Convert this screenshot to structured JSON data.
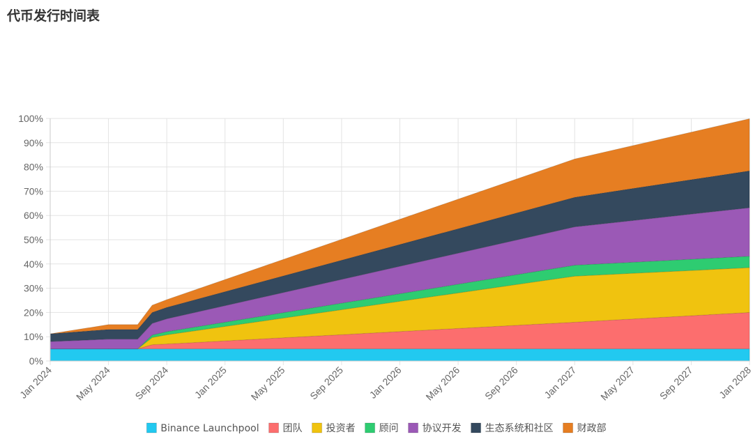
{
  "page": {
    "title": "代币发行时间表"
  },
  "chart_data": {
    "type": "area",
    "stacked": true,
    "title": "",
    "xlabel": "",
    "ylabel": "",
    "x_range": [
      "2024-01",
      "2028-01"
    ],
    "ylim": [
      0,
      100
    ],
    "y_ticks": [
      "0%",
      "10%",
      "20%",
      "30%",
      "40%",
      "50%",
      "60%",
      "70%",
      "80%",
      "90%",
      "100%"
    ],
    "x_ticks": [
      "Jan 2024",
      "May 2024",
      "Sep 2024",
      "Jan 2025",
      "May 2025",
      "Sep 2025",
      "Jan 2026",
      "May 2026",
      "Sep 2026",
      "Jan 2027",
      "May 2027",
      "Sep 2027",
      "Jan 2028"
    ],
    "grid": true,
    "legend_position": "bottom",
    "x": [
      "2024-01",
      "2024-05",
      "2024-06",
      "2024-07",
      "2024-08",
      "2024-09",
      "2027-01",
      "2028-01"
    ],
    "series": [
      {
        "name": "Binance Launchpool",
        "color": "#22c9f0",
        "values": [
          5,
          5,
          5,
          5,
          5,
          5,
          5,
          5
        ]
      },
      {
        "name": "团队",
        "color": "#fc6e6e",
        "values": [
          0,
          0,
          0,
          0,
          1.7,
          2.0,
          11,
          15
        ]
      },
      {
        "name": "投资者",
        "color": "#f0c30f",
        "values": [
          0,
          0,
          0,
          0,
          3.0,
          3.8,
          19,
          18.5
        ]
      },
      {
        "name": "顾问",
        "color": "#2ecc71",
        "values": [
          0,
          0,
          0,
          0,
          1.0,
          1.3,
          4.5,
          4.7
        ]
      },
      {
        "name": "协议开发",
        "color": "#9b59b6",
        "values": [
          3,
          4,
          4,
          4,
          4.8,
          5.3,
          15.8,
          20
        ]
      },
      {
        "name": "生态系统和社区",
        "color": "#34495e",
        "values": [
          3.2,
          4,
          4,
          4,
          4.5,
          4.7,
          12.2,
          15.2
        ]
      },
      {
        "name": "财政部",
        "color": "#e67e22",
        "values": [
          0,
          2,
          2,
          2,
          3,
          3.2,
          15.8,
          21.5
        ]
      }
    ]
  }
}
